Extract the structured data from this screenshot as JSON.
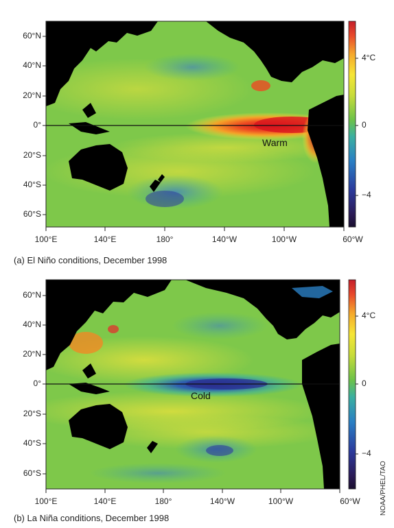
{
  "panels": [
    {
      "id": "el-nino",
      "caption": "(a) El Niño conditions, December 1998",
      "annotation": "Warm",
      "latitude_labels": [
        "60°N",
        "40°N",
        "20°N",
        "0°",
        "20°S",
        "40°S",
        "60°S"
      ],
      "longitude_labels": [
        "100°E",
        "140°E",
        "180°",
        "140°W",
        "100°W",
        "60°W"
      ],
      "scale_labels": [
        "4°C",
        "0",
        "−4"
      ]
    },
    {
      "id": "la-nina",
      "caption": "(b) La Niña conditions, December 1998",
      "annotation": "Cold",
      "latitude_labels": [
        "60°N",
        "40°N",
        "20°N",
        "0°",
        "20°S",
        "40°S",
        "60°S"
      ],
      "longitude_labels": [
        "100°E",
        "140°E",
        "180°",
        "140°W",
        "100°W",
        "60°W"
      ],
      "scale_labels": [
        "4°C",
        "0",
        "−4"
      ]
    }
  ],
  "credit": "NOAA/PHEL/TAO",
  "colors": {
    "land": "#000000",
    "ocean_base": "#7ec84a",
    "warm": "#e8262b",
    "hot_orange": "#f08a24",
    "yellow": "#f2e43a",
    "cool_blue": "#3a7ec6",
    "cold_blue": "#2b3a9c",
    "scale_ramp": [
      "#2b1a55",
      "#2b3a9c",
      "#2a7fc4",
      "#3bb0a0",
      "#6cc24a",
      "#c8dc3a",
      "#f6e636",
      "#f5a82c",
      "#e8492b",
      "#c41e2a"
    ]
  }
}
